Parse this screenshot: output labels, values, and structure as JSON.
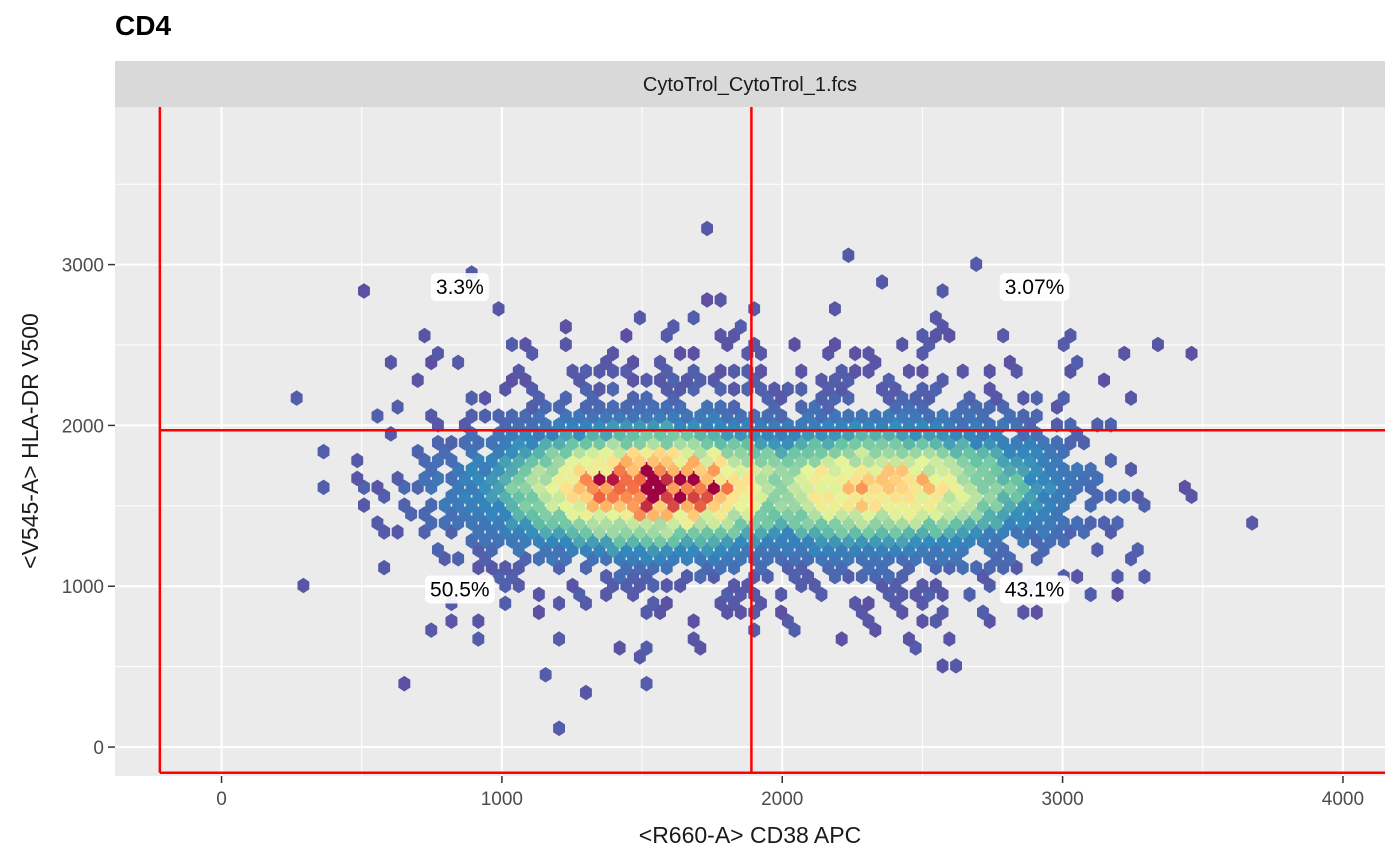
{
  "chart_data": {
    "type": "heatmap",
    "subtype": "hexbin",
    "title": "CD4",
    "facet": "CytoTrol_CytoTrol_1.fcs",
    "xlabel": "<R660-A> CD38 APC",
    "ylabel": "<V545-A> HLA-DR V500",
    "xlim": [
      -380,
      4150
    ],
    "ylim": [
      -180,
      3980
    ],
    "x_ticks": [
      0,
      1000,
      2000,
      3000,
      4000
    ],
    "y_ticks": [
      0,
      1000,
      2000,
      3000
    ],
    "grid": true,
    "color_scale": "Spectral (reversed): purple = low density, dark red = high density",
    "density_peaks": [
      {
        "x": 1550,
        "y": 1620,
        "level": 1.0
      },
      {
        "x": 2350,
        "y": 1620,
        "level": 0.8
      }
    ],
    "quadrant_gate": {
      "x_cut": 1890,
      "y_cut": 1970,
      "x_min": -220,
      "y_min": -160
    },
    "quadrants": [
      {
        "label": "3.3%",
        "x": 850,
        "y": 2860
      },
      {
        "label": "3.07%",
        "x": 2900,
        "y": 2860
      },
      {
        "label": "50.5%",
        "x": 850,
        "y": 980
      },
      {
        "label": "43.1%",
        "x": 2900,
        "y": 980
      }
    ],
    "colors": {
      "panel_bg": "#ebebeb",
      "strip_bg": "#d9d9d9",
      "gridline": "#ffffff",
      "gate_line": "#ff0000"
    }
  }
}
